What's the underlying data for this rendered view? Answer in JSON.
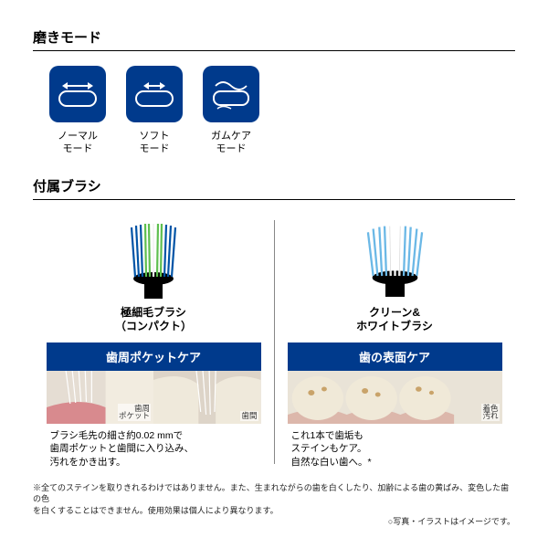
{
  "colors": {
    "navy": "#003a8c",
    "bg": "#ffffff",
    "gray": "#888888"
  },
  "section1": {
    "title": "磨きモード"
  },
  "modes": [
    {
      "label": "ノーマル\nモード",
      "icon": "normal"
    },
    {
      "label": "ソフト\nモード",
      "icon": "soft"
    },
    {
      "label": "ガムケア\nモード",
      "icon": "gumcare"
    }
  ],
  "section2": {
    "title": "付属ブラシ"
  },
  "brushes": [
    {
      "name": "極細毛ブラシ\n（コンパクト）",
      "care": "歯周ポケットケア",
      "illusts": [
        {
          "label": "歯周\nポケット",
          "type": "pocket"
        },
        {
          "label": "歯間",
          "type": "gap"
        }
      ],
      "desc": "ブラシ毛先の細さ約0.02 mmで\n歯周ポケットと歯間に入り込み、\n汚れをかき出す。",
      "brush_colors": {
        "outer": "#0054a6",
        "inner_top": "#5ebf4f",
        "inner_bottom": "#ffffff",
        "handle": "#000000"
      }
    },
    {
      "name": "クリーン&\nホワイトブラシ",
      "care": "歯の表面ケア",
      "illusts": [
        {
          "label": "着色\n汚れ",
          "type": "surface"
        }
      ],
      "desc": "これ1本で歯垢も\nステインもケア。\n自然な白い歯へ。*",
      "brush_colors": {
        "main": "#6bb8e6",
        "highlight": "#ffffff",
        "handle": "#000000"
      }
    }
  ],
  "footnote": {
    "line1": "※全てのステインを取りきれるわけではありません。また、生まれながらの歯を白くしたり、加齢による歯の黄ばみ、変色した歯の色",
    "line2": "を白くすることはできません。使用効果は個人により異なります。",
    "line3": "○写真・イラストはイメージです。"
  }
}
